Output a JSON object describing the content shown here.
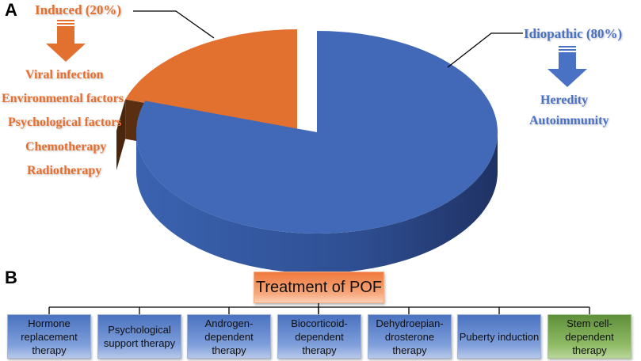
{
  "panel_a_label": "A",
  "panel_b_label": "B",
  "chart_data": {
    "type": "pie",
    "style": "3d exploded",
    "slices": [
      {
        "label": "Idiopathic (80%)",
        "value": 80,
        "color": "#4169b8",
        "causes": [
          "Heredity",
          "Autoimmunity"
        ]
      },
      {
        "label": "Induced (20%)",
        "value": 20,
        "color": "#e2702f",
        "causes": [
          "Viral infection",
          "Environmental factors",
          "Psychological factors",
          "Chemotherapy",
          "Radiotherapy"
        ]
      }
    ],
    "legend": "none"
  },
  "diagram": {
    "root": "Treatment of POF",
    "children": [
      {
        "label": "Hormone replacement therapy",
        "color": "#4a72c0"
      },
      {
        "label": "Psychological support therapy",
        "color": "#4a72c0"
      },
      {
        "label": "Androgen-dependent therapy",
        "color": "#4a72c0"
      },
      {
        "label": "Biocorticoid-dependent therapy",
        "color": "#4a72c0"
      },
      {
        "label": "Dehydroepian-drosterone therapy",
        "color": "#4a72c0"
      },
      {
        "label": "Puberty induction",
        "color": "#4a72c0"
      },
      {
        "label": "Stem cell-dependent therapy",
        "color": "#6b9b45"
      }
    ]
  }
}
